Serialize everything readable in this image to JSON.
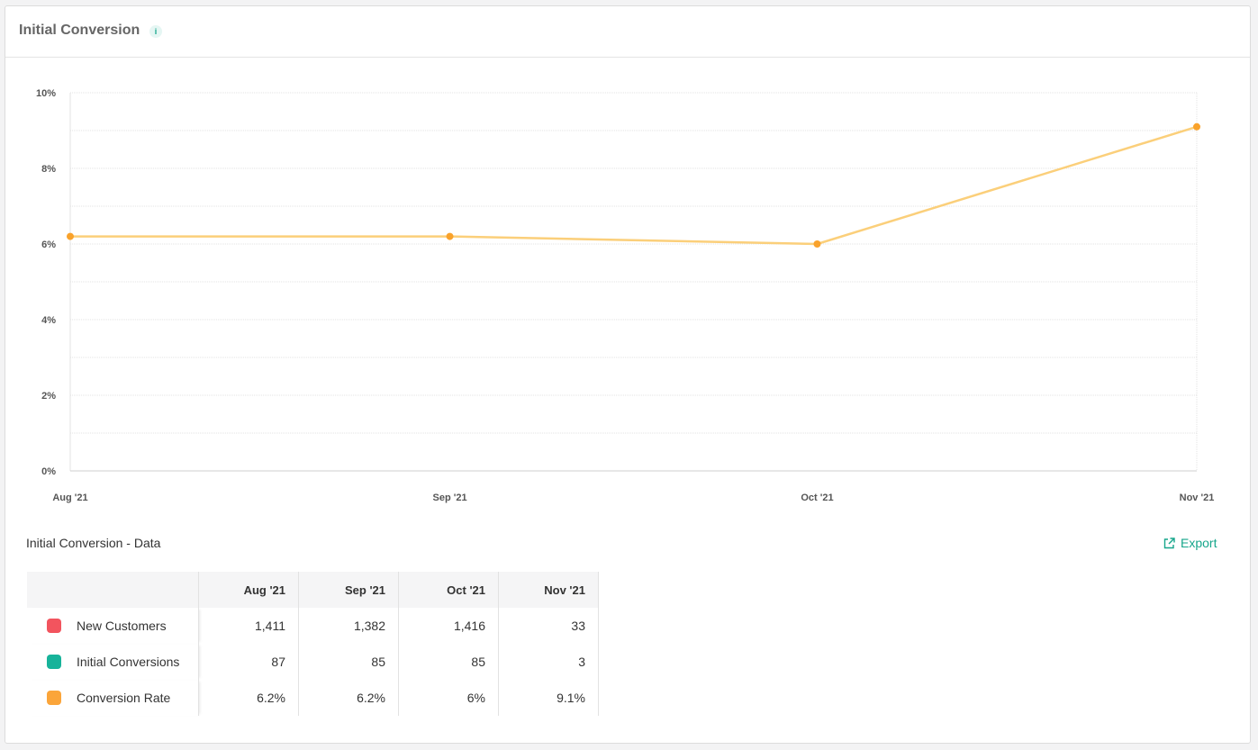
{
  "card": {
    "title": "Initial Conversion",
    "info_icon": "info-icon"
  },
  "chart_data": {
    "type": "line",
    "title": "",
    "xlabel": "",
    "ylabel": "",
    "categories": [
      "Aug '21",
      "Sep '21",
      "Oct '21",
      "Nov '21"
    ],
    "x_dates": [
      "2021-08-01",
      "2021-09-01",
      "2021-10-01",
      "2021-11-01"
    ],
    "series": [
      {
        "values": [
          6.2,
          6.2,
          6.0,
          9.1
        ],
        "color": "#fbcf7a",
        "marker_color": "#f9a22b"
      }
    ],
    "ylim": [
      0,
      10
    ],
    "y_ticks": [
      0,
      2,
      4,
      6,
      8,
      10
    ],
    "y_tick_labels": [
      "0%",
      "2%",
      "4%",
      "6%",
      "8%",
      "10%"
    ],
    "grid": true,
    "legend": "none"
  },
  "data_section": {
    "title": "Initial Conversion - Data",
    "export_label": "Export",
    "export_icon": "external-link-icon",
    "accent_color": "#16a68b"
  },
  "table": {
    "columns": [
      "Aug '21",
      "Sep '21",
      "Oct '21",
      "Nov '21"
    ],
    "rows": [
      {
        "label": "New Customers",
        "color": "#f2545e",
        "values": [
          "1,411",
          "1,382",
          "1,416",
          "33"
        ]
      },
      {
        "label": "Initial Conversions",
        "color": "#17b39a",
        "values": [
          "87",
          "85",
          "85",
          "3"
        ]
      },
      {
        "label": "Conversion Rate",
        "color": "#fba53a",
        "values": [
          "6.2%",
          "6.2%",
          "6%",
          "9.1%"
        ]
      }
    ]
  }
}
